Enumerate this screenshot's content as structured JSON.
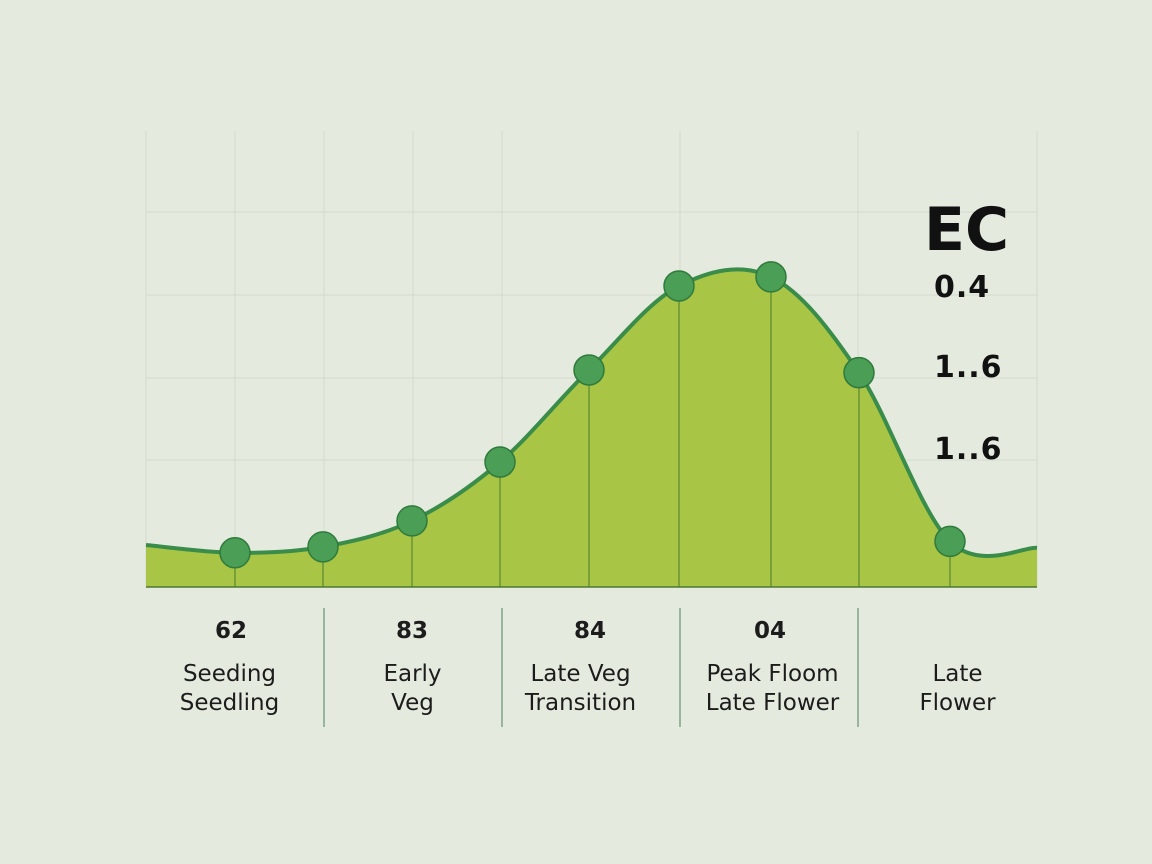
{
  "chart_data": {
    "type": "area",
    "ylabel": "EC",
    "ytick_labels": [
      "0.4",
      "1..6",
      "1..6"
    ],
    "grid": true,
    "colors": {
      "fill": "#a8c545",
      "line": "#3a8c4a",
      "marker": "#4a9e55",
      "background": "#e5eadf"
    },
    "ylim": [
      0,
      1
    ],
    "curve_start": 0.092,
    "curve_end": 0.086,
    "points": [
      0.075,
      0.088,
      0.145,
      0.274,
      0.476,
      0.66,
      0.68,
      0.47,
      0.1
    ],
    "columns": [
      {
        "value": "62",
        "label": "Seeding\nSeedling"
      },
      {
        "value": "83",
        "label": "Early\nVeg"
      },
      {
        "value": "84",
        "label": "Late Veg\nTransition"
      },
      {
        "value": "04",
        "label": "Peak Floom\nLate Flower"
      },
      {
        "value": "",
        "label": "Late\nFlower"
      }
    ]
  }
}
